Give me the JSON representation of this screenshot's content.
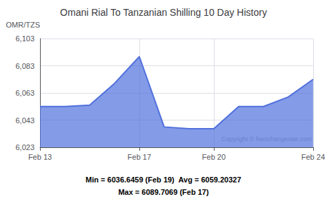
{
  "chart_data": {
    "type": "area",
    "title": "Omani Rial To Tanzanian Shilling 10 Day History",
    "ylabel": "OMR/TZS",
    "categories": [
      "Feb 13",
      null,
      null,
      null,
      "Feb 17",
      null,
      null,
      "Feb 20",
      null,
      null,
      null,
      "Feb 24"
    ],
    "values": [
      6053,
      6053,
      6054,
      6070,
      6089.7069,
      6038,
      6036.6459,
      6036.6459,
      6053,
      6053,
      6060,
      6073
    ],
    "ylim": [
      6023,
      6103
    ],
    "yticks": [
      {
        "value": 6023,
        "label": "6,023"
      },
      {
        "value": 6043,
        "label": "6,043"
      },
      {
        "value": 6063,
        "label": "6,063"
      },
      {
        "value": 6083,
        "label": "6,083"
      },
      {
        "value": 6103,
        "label": "6,103"
      }
    ],
    "grid": true,
    "annotations": [
      "Copyright © fxexchangerate.com",
      "Min = 6036.6459 (Feb 19)  Avg = 6059.20327",
      "Max = 6089.7069 (Feb 17)"
    ]
  }
}
